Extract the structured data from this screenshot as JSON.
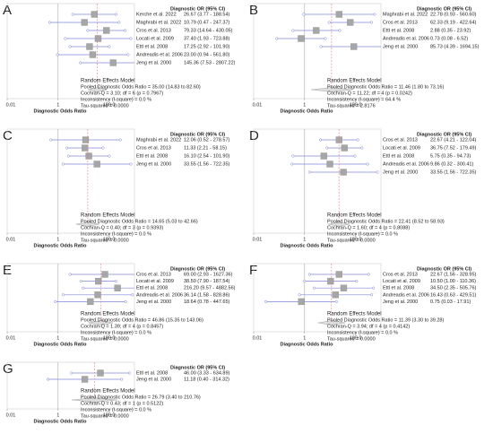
{
  "chart_data": [
    {
      "type": "forest",
      "panel": "A",
      "header": "Diagnostic OR (95% CI)",
      "xlabel": "Diagnostic Odds Ratio",
      "log_scale": true,
      "xlim": [
        0.01,
        1000
      ],
      "xticks": [
        0.01,
        1,
        {
          "value": 100,
          "label": "100.0"
        }
      ],
      "categories": [
        "Kerche et al. 2022",
        "Maghrabi et al. 2022",
        "Cros et al. 2013",
        "Locati et al. 2009",
        "Ettl et al. 2008",
        "Andreadis et al. 2006",
        "Jeng et al. 2000"
      ],
      "values": [
        26.67,
        10.79,
        79.33,
        37.4,
        17.25,
        23.0,
        145.36
      ],
      "lower": [
        3.77,
        0.47,
        14.64,
        1.93,
        2.92,
        0.94,
        7.53
      ],
      "upper": [
        188.54,
        247.37,
        430.05,
        723.88,
        101.9,
        561.8,
        2807.22
      ],
      "value_labels": [
        "26.67   (3.77 - 188.54)",
        "10.79   (0.47 - 247.37)",
        "79.33   (14.64 - 430.05)",
        "37.40   (1.93 - 723.88)",
        "17.25   (2.92 - 101.90)",
        "23.00   (0.94 - 561.80)",
        "145.36   (7.53 - 2807.22)"
      ],
      "pooled": {
        "value": 35.0,
        "lower": 14.83,
        "upper": 82.6
      },
      "summary": [
        "Random Effects Model",
        "Pooled Diagnostic Odds Ratio = 35.00 (14.83 to 82.60)",
        "Cochran-Q = 3.10; df = 6 (p = 0.7967)",
        "Inconsistency (I-square) = 0.0 %",
        "Tau-squared = 0.0000"
      ]
    },
    {
      "type": "forest",
      "panel": "B",
      "header": "Diagnostic OR (95% CI)",
      "xlabel": "Diagnostic Odds Ratio",
      "log_scale": true,
      "xlim": [
        0.01,
        1000
      ],
      "xticks": [
        0.01,
        1,
        {
          "value": 100,
          "label": "100.0"
        }
      ],
      "categories": [
        "Maghrabi et al. 2022",
        "Cros et al. 2013",
        "Ettl et al. 2008",
        "Andreadis et al. 2006",
        "Jeng et al. 2000"
      ],
      "values": [
        22.78,
        62.33,
        2.88,
        0.73,
        85.73
      ],
      "lower": [
        0.93,
        9.19,
        0.35,
        0.08,
        4.39
      ],
      "upper": [
        560.6,
        422.64,
        23.92,
        6.52,
        1694.15
      ],
      "value_labels": [
        "22.78   (0.93 - 560.60)",
        "62.33   (9.19 - 422.64)",
        "2.88   (0.35 - 23.92)",
        "0.73   (0.08 - 6.52)",
        "85.73   (4.39 - 1694.15)"
      ],
      "pooled": {
        "value": 11.46,
        "lower": 1.8,
        "upper": 73.16
      },
      "summary": [
        "Random Effects Model",
        "Pooled Diagnostic Odds Ratio = 11.46 (1.80 to 73.16)",
        "Cochran-Q = 11.22; df = 4 (p = 0.0242)",
        "Inconsistency (I-square) = 64.4 %",
        "Tau-squared = 2.8176"
      ]
    },
    {
      "type": "forest",
      "panel": "C",
      "header": "Diagnostic OR (95% CI)",
      "xlabel": "Diagnostic Odds Ratio",
      "log_scale": true,
      "xlim": [
        0.01,
        1000
      ],
      "xticks": [
        0.01,
        1,
        {
          "value": 100,
          "label": "100.0"
        }
      ],
      "categories": [
        "Maghrabi et al. 2022",
        "Cros et al. 2013",
        "Ettl et al. 2008",
        "Jeng et al. 2000"
      ],
      "values": [
        12.06,
        11.33,
        16.1,
        33.55
      ],
      "lower": [
        0.52,
        2.21,
        2.54,
        1.56
      ],
      "upper": [
        278.57,
        58.15,
        101.9,
        722.35
      ],
      "value_labels": [
        "12.06   (0.52 - 278.57)",
        "11.33   (2.21 - 58.15)",
        "16.10   (2.54 - 101.90)",
        "33.55   (1.56 - 722.35)"
      ],
      "pooled": {
        "value": 14.65,
        "lower": 5.03,
        "upper": 42.66
      },
      "summary": [
        "Random Effects Model",
        "Pooled Diagnostic Odds Ratio = 14.65 (5.03 to 42.66)",
        "Cochran-Q = 0.40; df = 3 (p = 0.9393)",
        "Inconsistency (I-square) = 0.0 %",
        "Tau-squared = 0.0000"
      ]
    },
    {
      "type": "forest",
      "panel": "D",
      "header": "Diagnostic OR (95% CI)",
      "xlabel": "Diagnostic Odds Ratio",
      "log_scale": true,
      "xlim": [
        0.01,
        1000
      ],
      "xticks": [
        0.01,
        1,
        {
          "value": 100,
          "label": "100.0"
        }
      ],
      "categories": [
        "Cros et al. 2013",
        "Locati et al. 2009",
        "Ettl et al. 2008",
        "Andreadis et al. 2006",
        "Jeng et al. 2000"
      ],
      "values": [
        22.67,
        36.75,
        5.75,
        9.86,
        33.55
      ],
      "lower": [
        4.21,
        7.52,
        0.35,
        0.32,
        1.56
      ],
      "upper": [
        122.04,
        179.49,
        94.73,
        300.41,
        722.35
      ],
      "value_labels": [
        "22.67   (4.21 - 122.04)",
        "36.75   (7.52 - 179.49)",
        "5.75   (0.35 - 94.73)",
        "9.86   (0.32 - 300.41)",
        "33.55   (1.56 - 722.35)"
      ],
      "pooled": {
        "value": 22.41,
        "lower": 8.52,
        "upper": 58.93
      },
      "summary": [
        "Random Effects Model",
        "Pooled Diagnostic Odds Ratio = 22.41 (8.52 to 58.93)",
        "Cochran-Q = 1.60; df = 4 (p = 0.8088)",
        "Inconsistency (I-square) = 0.0 %",
        "Tau-squared = 0.0000"
      ]
    },
    {
      "type": "forest",
      "panel": "E",
      "header": "Diagnostic OR (95% CI)",
      "xlabel": "Diagnostic Odds Ratio",
      "log_scale": true,
      "xlim": [
        0.01,
        1000
      ],
      "xticks": [
        0.01,
        1,
        {
          "value": 100,
          "label": "100.0"
        }
      ],
      "categories": [
        "Cros et al. 2013",
        "Locati et al. 2009",
        "Ettl et al. 2008",
        "Andreadis et al. 2006",
        "Jeng et al. 2000"
      ],
      "values": [
        69.0,
        38.5,
        216.2,
        36.14,
        18.64
      ],
      "lower": [
        2.93,
        7.9,
        9.57,
        1.58,
        0.78
      ],
      "upper": [
        1627.36,
        187.54,
        4882.56,
        828.86,
        447.65
      ],
      "value_labels": [
        "69.00   (2.93 - 1627.36)",
        "38.50   (7.90 - 187.54)",
        "216.20   (9.57 - 4882.56)",
        "36.14   (1.58 - 828.86)",
        "18.64   (0.78 - 447.65)"
      ],
      "pooled": {
        "value": 46.86,
        "lower": 15.35,
        "upper": 143.06
      },
      "summary": [
        "Random Effects Model",
        "Pooled Diagnostic Odds Ratio = 46.86 (15.35 to 143.06)",
        "Cochran-Q = 1.39; df = 4 (p = 0.8457)",
        "Inconsistency (I-square) = 0.0 %",
        "Tau-squared = 0.0000"
      ]
    },
    {
      "type": "forest",
      "panel": "F",
      "header": "Diagnostic OR (95% CI)",
      "xlabel": "Diagnostic Odds Ratio",
      "log_scale": true,
      "xlim": [
        0.01,
        1000
      ],
      "xticks": [
        0.01,
        1,
        {
          "value": 100,
          "label": "100.0"
        }
      ],
      "categories": [
        "Cros et al. 2013",
        "Locati et al. 2009",
        "Ettl et al. 2008",
        "Andreadis et al. 2006",
        "Jeng et al. 2000"
      ],
      "values": [
        22.67,
        10.5,
        34.5,
        16.43,
        0.75
      ],
      "lower": [
        1.56,
        1.0,
        2.35,
        0.63,
        0.03
      ],
      "upper": [
        328.95,
        110.36,
        505.76,
        429.51,
        17.91
      ],
      "value_labels": [
        "22.67   (1.56 - 328.95)",
        "10.50   (1.00 - 110.36)",
        "34.50   (2.35 - 505.76)",
        "16.43   (0.63 - 429.51)",
        "0.75   (0.03 - 17.91)"
      ],
      "pooled": {
        "value": 11.39,
        "lower": 3.3,
        "upper": 39.28
      },
      "summary": [
        "Random Effects Model",
        "Pooled Diagnostic Odds Ratio = 11.39 (3.30 to 39.28)",
        "Cochran-Q = 3.94; df = 4 (p = 0.4142)",
        "Inconsistency (I-square) = 0.0 %",
        "Tau-squared = 0.0000"
      ]
    },
    {
      "type": "forest",
      "panel": "G",
      "header": "Diagnostic OR (95% CI)",
      "xlabel": "Diagnostic Odds Ratio",
      "log_scale": true,
      "xlim": [
        0.01,
        1000
      ],
      "xticks": [
        0.01,
        1,
        {
          "value": 100,
          "label": "100.0"
        }
      ],
      "categories": [
        "Ettl et al. 2008",
        "Jeng et al. 2000"
      ],
      "values": [
        46.0,
        11.18
      ],
      "lower": [
        3.33,
        0.4
      ],
      "upper": [
        634.89,
        314.32
      ],
      "value_labels": [
        "46.00   (3.33 - 634.89)",
        "11.18   (0.40 - 314.32)"
      ],
      "pooled": {
        "value": 26.79,
        "lower": 3.4,
        "upper": 210.76
      },
      "summary": [
        "Random Effects Model",
        "Pooled Diagnostic Odds Ratio = 26.79 (3.40 to 210.76)",
        "Cochran-Q = 0.43; df = 1 (p = 0.5122)",
        "Inconsistency (I-square) = 0.0 %",
        "Tau-squared = 0.0000"
      ]
    }
  ]
}
